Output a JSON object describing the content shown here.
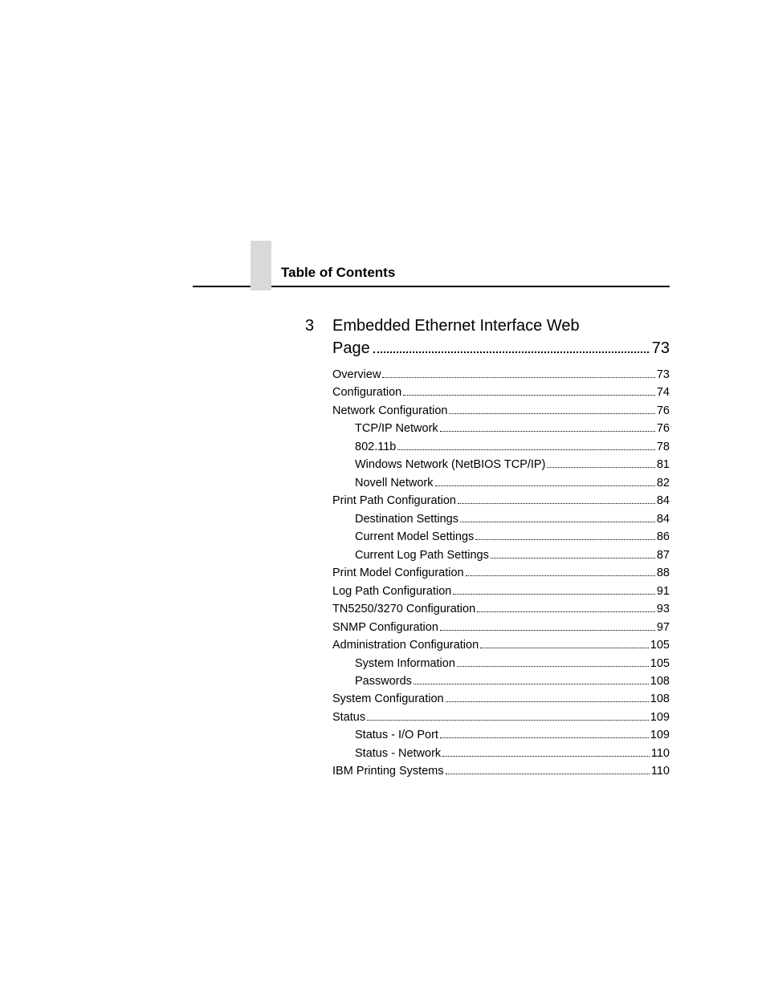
{
  "header": {
    "title": "Table of Contents"
  },
  "chapter": {
    "number": "3",
    "title": "Embedded Ethernet Interface Web",
    "title_cont": "Page",
    "page": "73"
  },
  "toc": [
    {
      "level": 1,
      "label": "Overview",
      "page": "73"
    },
    {
      "level": 1,
      "label": "Configuration",
      "page": "74"
    },
    {
      "level": 1,
      "label": "Network Configuration",
      "page": "76"
    },
    {
      "level": 2,
      "label": "TCP/IP Network",
      "page": "76"
    },
    {
      "level": 2,
      "label": "802.11b",
      "page": "78"
    },
    {
      "level": 2,
      "label": "Windows Network (NetBIOS TCP/IP)",
      "page": "81"
    },
    {
      "level": 2,
      "label": "Novell Network",
      "page": "82"
    },
    {
      "level": 1,
      "label": "Print Path Configuration",
      "page": "84"
    },
    {
      "level": 2,
      "label": "Destination Settings",
      "page": "84"
    },
    {
      "level": 2,
      "label": "Current Model Settings",
      "page": "86"
    },
    {
      "level": 2,
      "label": "Current Log Path Settings",
      "page": "87"
    },
    {
      "level": 1,
      "label": "Print Model Configuration",
      "page": "88"
    },
    {
      "level": 1,
      "label": "Log Path Configuration",
      "page": "91"
    },
    {
      "level": 1,
      "label": "TN5250/3270 Configuration",
      "page": "93"
    },
    {
      "level": 1,
      "label": "SNMP Configuration",
      "page": "97"
    },
    {
      "level": 1,
      "label": "Administration Configuration",
      "page": "105"
    },
    {
      "level": 2,
      "label": "System Information",
      "page": "105"
    },
    {
      "level": 2,
      "label": "Passwords",
      "page": "108"
    },
    {
      "level": 1,
      "label": "System Configuration",
      "page": "108"
    },
    {
      "level": 1,
      "label": "Status",
      "page": "109"
    },
    {
      "level": 2,
      "label": "Status - I/O Port",
      "page": "109"
    },
    {
      "level": 2,
      "label": "Status - Network",
      "page": "110"
    },
    {
      "level": 1,
      "label": "IBM Printing Systems",
      "page": "110"
    }
  ],
  "colors": {
    "background": "#ffffff",
    "text": "#000000",
    "accent_gray": "#d9d9d9"
  },
  "typography": {
    "header_fontsize_pt": 13,
    "chapter_fontsize_pt": 15,
    "entry_fontsize_pt": 11,
    "font_family": "Arial"
  }
}
